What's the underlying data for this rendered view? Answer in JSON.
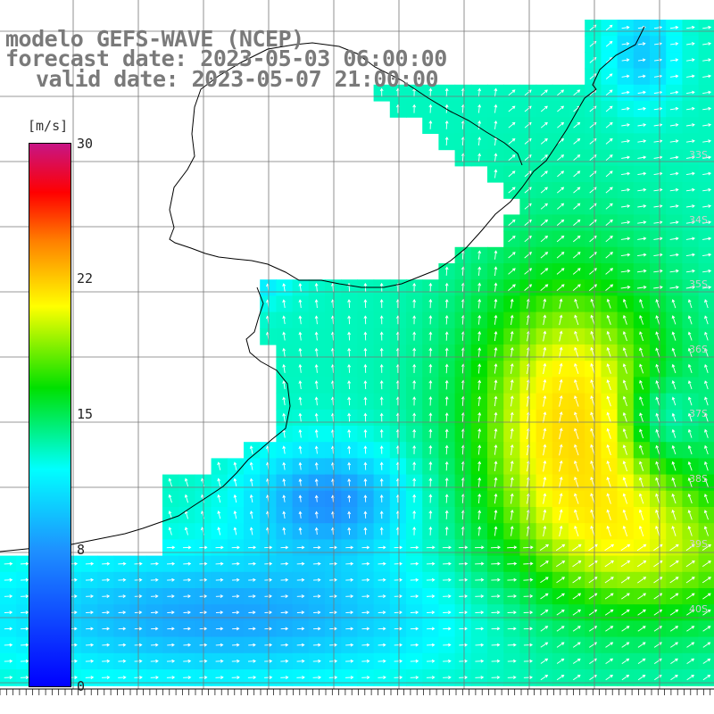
{
  "title": {
    "model": "modelo GEFS-WAVE (NCEP)",
    "forecast": "forecast date: 2023-05-03 06:00:00",
    "valid": "valid date: 2023-05-07 21:00:00"
  },
  "colorbar": {
    "unit": "[m/s]",
    "ticks": [
      "30",
      "22",
      "15",
      "8",
      "0"
    ],
    "colors": [
      "#0000ff",
      "#1e90ff",
      "#00ffff",
      "#00e000",
      "#ffff00",
      "#ff8000",
      "#ff0000",
      "#c71585"
    ]
  },
  "map": {
    "land_color": "#ffffff",
    "grid_color": "#7f7f7f",
    "coast_color": "#000000",
    "lat_labels": [
      "33S",
      "34S",
      "35S",
      "36S",
      "37S",
      "38S",
      "39S",
      "40S"
    ]
  }
}
